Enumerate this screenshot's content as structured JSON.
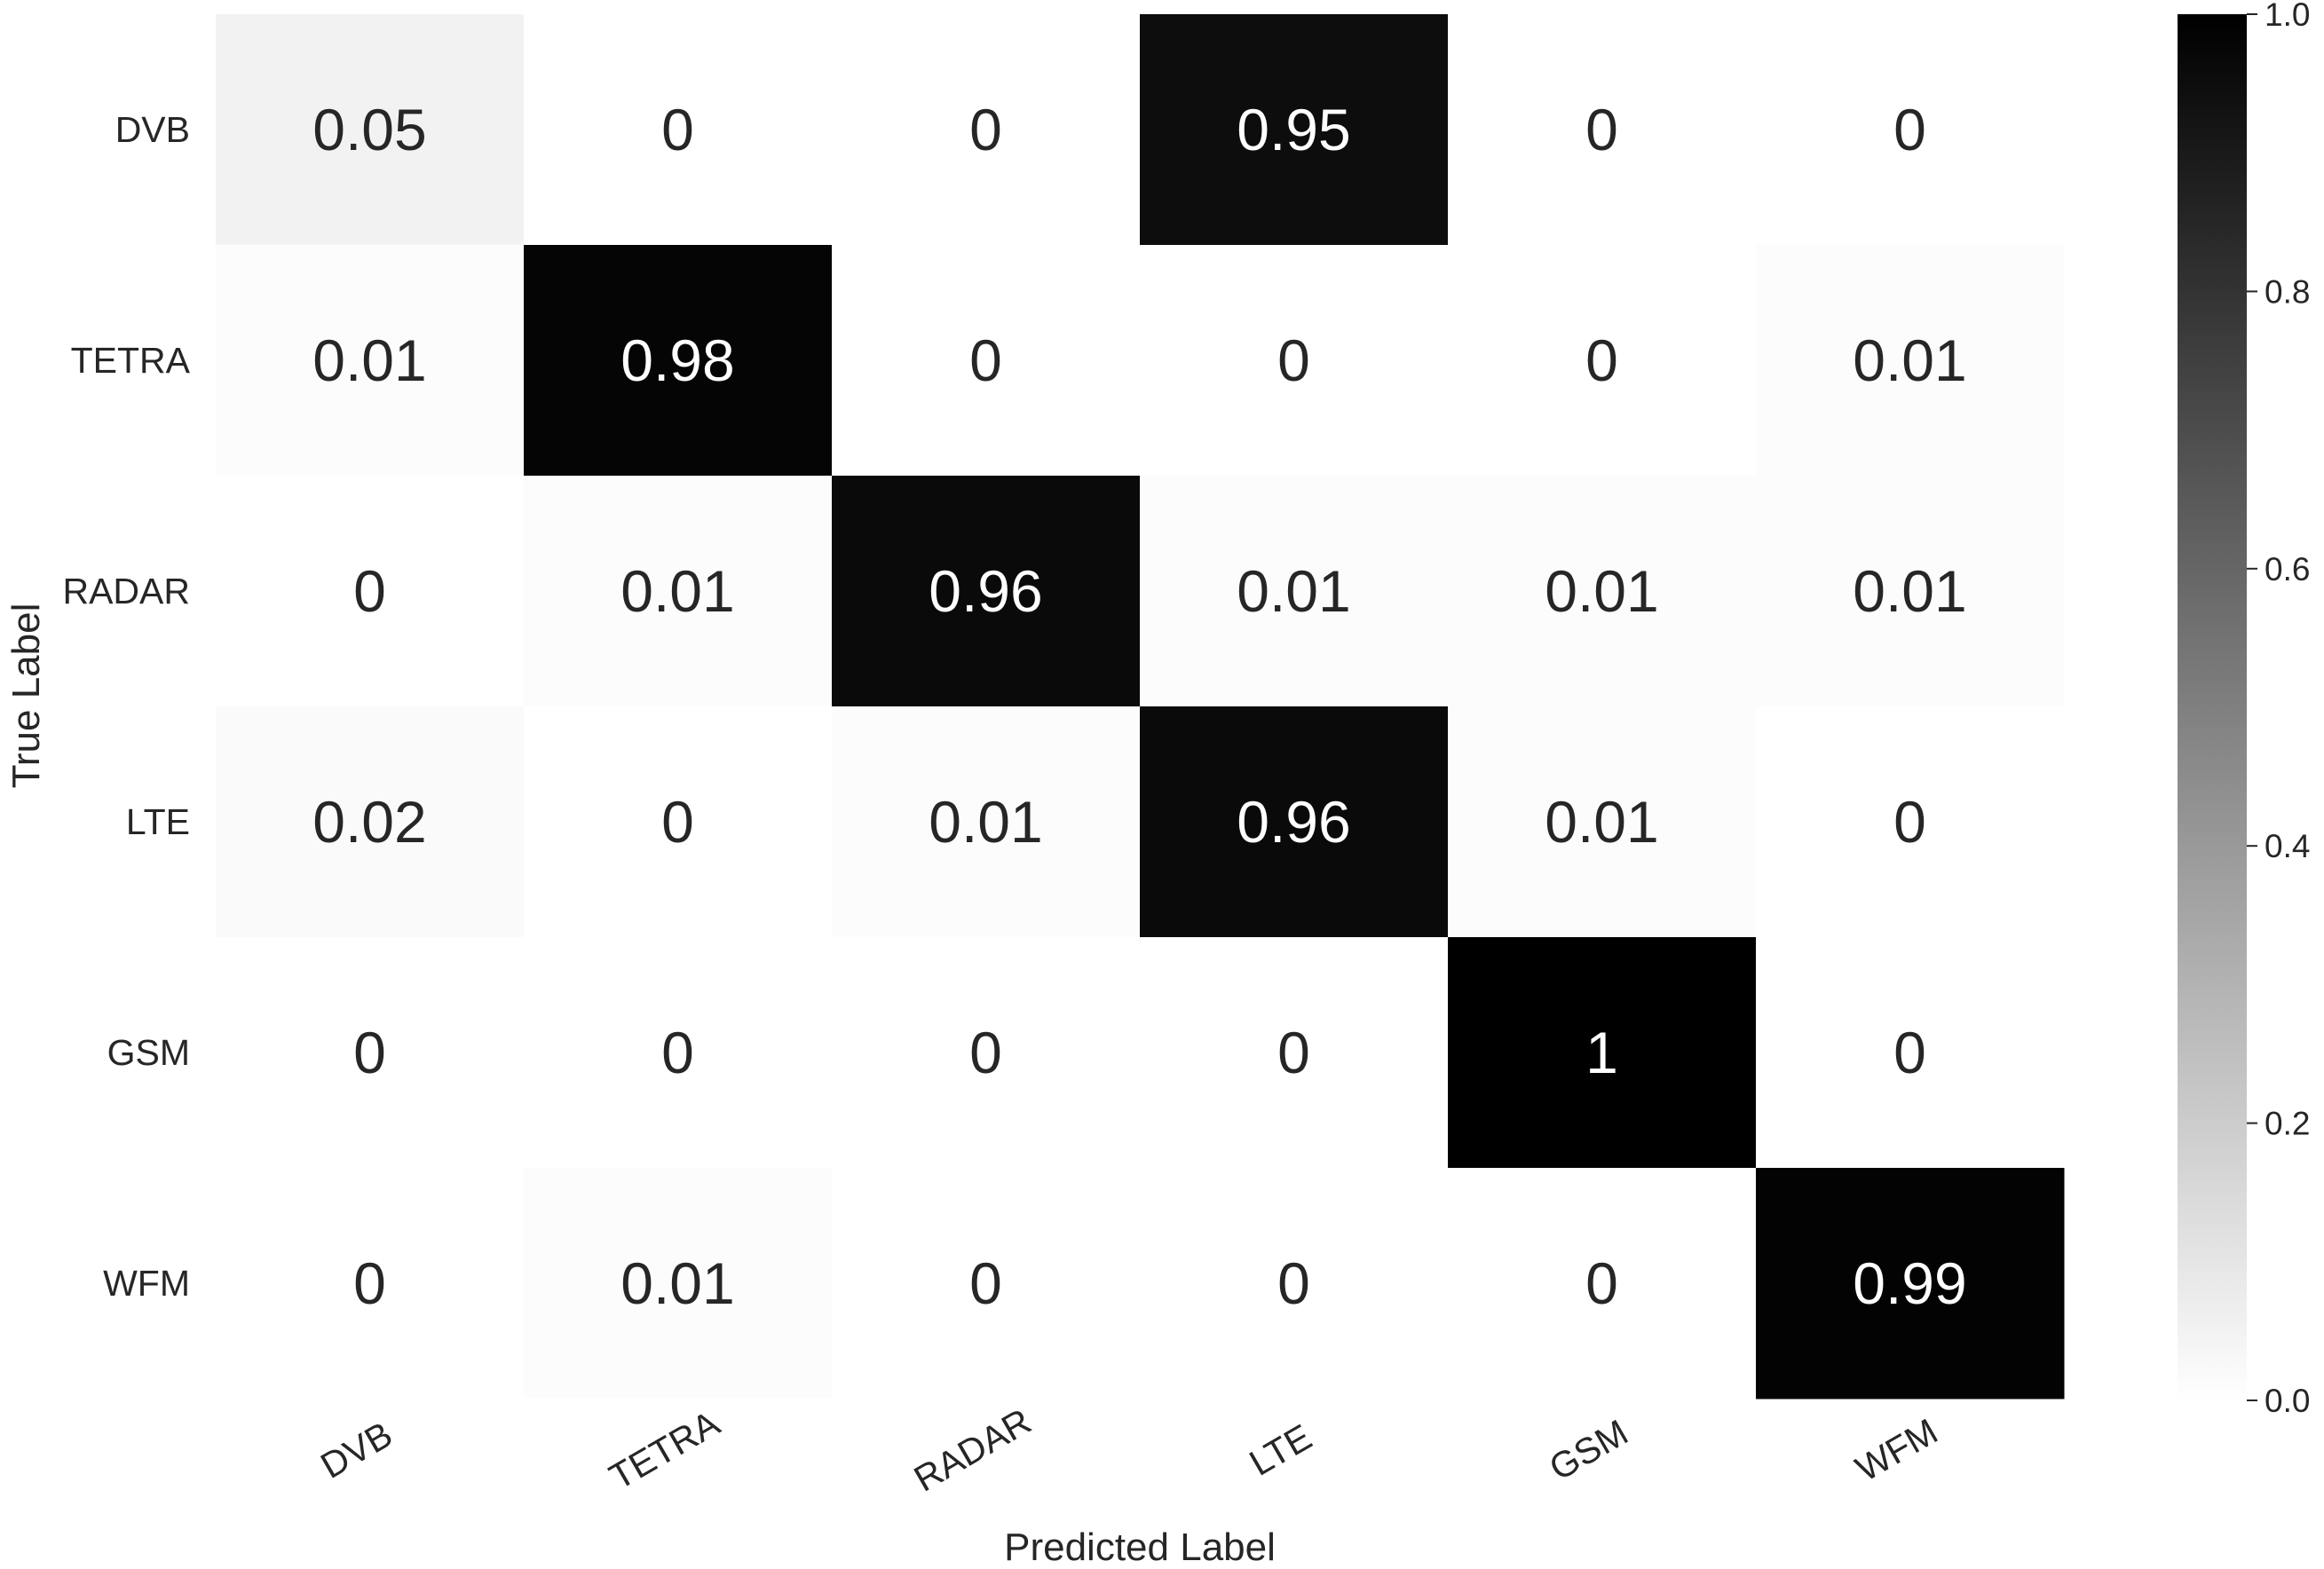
{
  "chart_data": {
    "type": "heatmap",
    "rows": [
      "DVB",
      "TETRA",
      "RADAR",
      "LTE",
      "GSM",
      "WFM"
    ],
    "columns": [
      "DVB",
      "TETRA",
      "RADAR",
      "LTE",
      "GSM",
      "WFM"
    ],
    "values": [
      [
        0.05,
        0,
        0,
        0.95,
        0,
        0
      ],
      [
        0.01,
        0.98,
        0,
        0,
        0,
        0.01
      ],
      [
        0,
        0.01,
        0.96,
        0.01,
        0.01,
        0.01
      ],
      [
        0.02,
        0,
        0.01,
        0.96,
        0.01,
        0
      ],
      [
        0,
        0,
        0,
        0,
        1,
        0
      ],
      [
        0,
        0.01,
        0,
        0,
        0,
        0.99
      ]
    ],
    "cell_labels": [
      [
        "0.05",
        "0",
        "0",
        "0.95",
        "0",
        "0"
      ],
      [
        "0.01",
        "0.98",
        "0",
        "0",
        "0",
        "0.01"
      ],
      [
        "0",
        "0.01",
        "0.96",
        "0.01",
        "0.01",
        "0.01"
      ],
      [
        "0.02",
        "0",
        "0.01",
        "0.96",
        "0.01",
        "0"
      ],
      [
        "0",
        "0",
        "0",
        "0",
        "1",
        "0"
      ],
      [
        "0",
        "0.01",
        "0",
        "0",
        "0",
        "0.99"
      ]
    ],
    "xlabel": "Predicted Label",
    "ylabel": "True Label",
    "colorbar": {
      "range": [
        0,
        1
      ],
      "ticks": [
        "0.0",
        "0.2",
        "0.4",
        "0.6",
        "0.8",
        "1.0"
      ],
      "colormap": "greys",
      "low_color": "#ffffff",
      "high_color": "#000000"
    },
    "grid": false
  }
}
